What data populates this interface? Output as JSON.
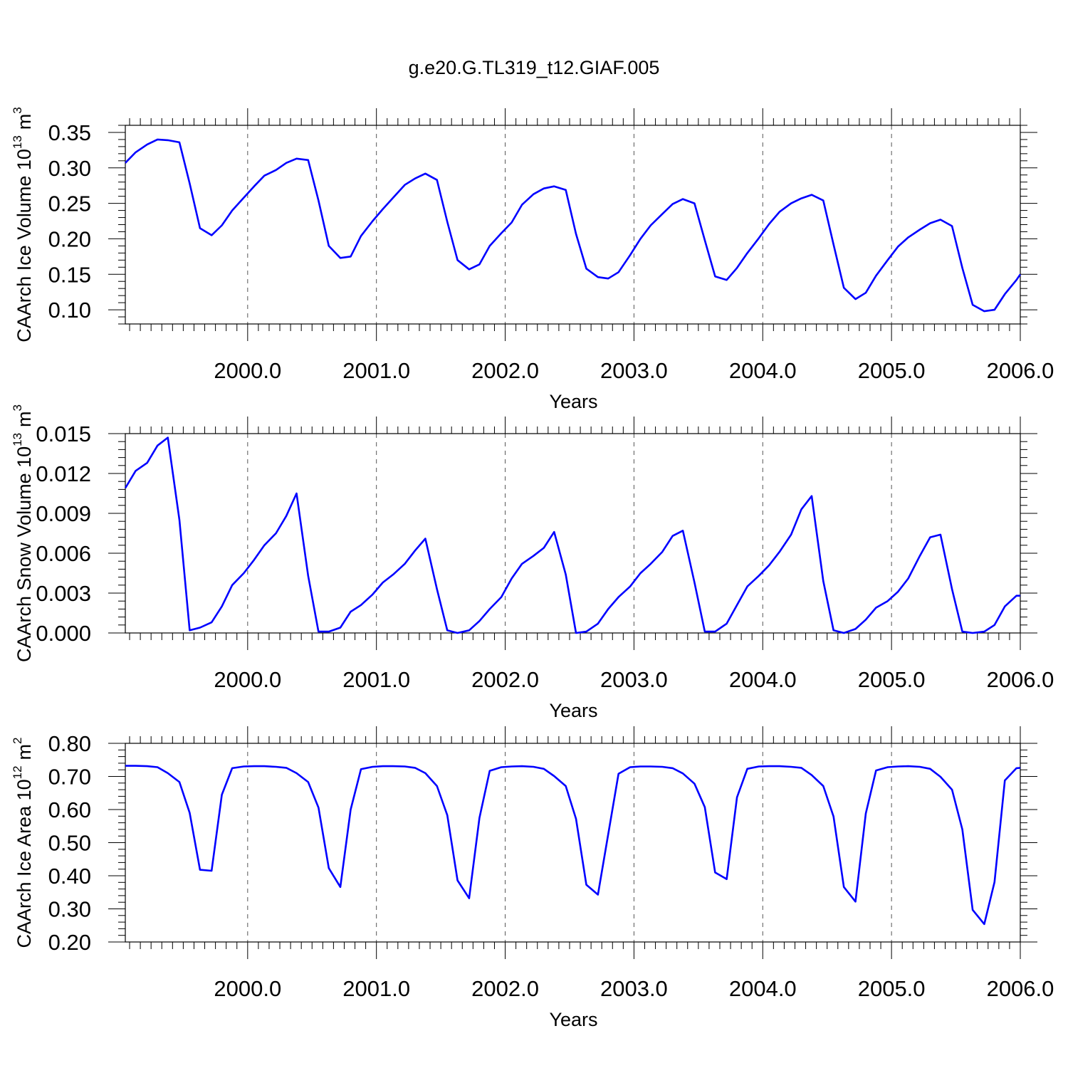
{
  "title": "g.e20.G.TL319_t12.GIAF.005",
  "line_color": "#0000ff",
  "chart_data": [
    {
      "type": "line",
      "ylabel": "CAArch Ice Volume 10",
      "ylabel_exp": "13",
      "ylabel_unit": "m",
      "ylabel_unit_exp": "3",
      "xlabel": "Years",
      "xlim": [
        1999.05,
        2006.0
      ],
      "ylim": [
        0.08,
        0.36
      ],
      "yticks": [
        "0.10",
        "0.15",
        "0.20",
        "0.25",
        "0.30",
        "0.35"
      ],
      "xticks": [
        "2000.0",
        "2001.0",
        "2002.0",
        "2003.0",
        "2004.0",
        "2005.0",
        "2006.0"
      ],
      "grid": "vertical dashed at years",
      "series": [
        {
          "x": [
            1999.05,
            1999.13,
            1999.22,
            1999.3,
            1999.38,
            1999.47,
            1999.55,
            1999.63,
            1999.72,
            1999.8,
            1999.88,
            1999.97,
            2000.05,
            2000.13,
            2000.22,
            2000.3,
            2000.38,
            2000.47,
            2000.55,
            2000.63,
            2000.72,
            2000.8,
            2000.88,
            2000.97,
            2001.05,
            2001.13,
            2001.22,
            2001.3,
            2001.38,
            2001.47,
            2001.55,
            2001.63,
            2001.72,
            2001.8,
            2001.88,
            2001.97,
            2002.05,
            2002.13,
            2002.22,
            2002.3,
            2002.38,
            2002.47,
            2002.55,
            2002.63,
            2002.72,
            2002.8,
            2002.88,
            2002.97,
            2003.05,
            2003.13,
            2003.22,
            2003.3,
            2003.38,
            2003.47,
            2003.55,
            2003.63,
            2003.72,
            2003.8,
            2003.88,
            2003.97,
            2004.05,
            2004.13,
            2004.22,
            2004.3,
            2004.38,
            2004.47,
            2004.55,
            2004.63,
            2004.72,
            2004.8,
            2004.88,
            2004.97,
            2005.05,
            2005.13,
            2005.22,
            2005.3,
            2005.38,
            2005.47,
            2005.55,
            2005.63,
            2005.72,
            2005.8,
            2005.88,
            2005.97,
            2006.0
          ],
          "y": [
            0.307,
            0.322,
            0.333,
            0.34,
            0.339,
            0.336,
            0.278,
            0.215,
            0.205,
            0.219,
            0.24,
            0.258,
            0.274,
            0.289,
            0.297,
            0.307,
            0.313,
            0.311,
            0.254,
            0.19,
            0.173,
            0.175,
            0.204,
            0.225,
            0.242,
            0.258,
            0.276,
            0.285,
            0.292,
            0.283,
            0.224,
            0.17,
            0.157,
            0.164,
            0.19,
            0.208,
            0.223,
            0.248,
            0.263,
            0.271,
            0.274,
            0.269,
            0.207,
            0.158,
            0.146,
            0.144,
            0.153,
            0.177,
            0.2,
            0.219,
            0.235,
            0.249,
            0.256,
            0.25,
            0.198,
            0.147,
            0.142,
            0.159,
            0.18,
            0.201,
            0.221,
            0.238,
            0.25,
            0.257,
            0.262,
            0.254,
            0.192,
            0.131,
            0.115,
            0.124,
            0.148,
            0.17,
            0.189,
            0.202,
            0.213,
            0.222,
            0.227,
            0.218,
            0.159,
            0.107,
            0.098,
            0.1,
            0.122,
            0.142,
            0.15
          ]
        }
      ]
    },
    {
      "type": "line",
      "ylabel": "CAArch Snow Volume 10",
      "ylabel_exp": "13",
      "ylabel_unit": "m",
      "ylabel_unit_exp": "3",
      "xlabel": "Years",
      "xlim": [
        1999.05,
        2006.0
      ],
      "ylim": [
        0.0,
        0.015
      ],
      "yticks": [
        "0.000",
        "0.003",
        "0.006",
        "0.009",
        "0.012",
        "0.015"
      ],
      "xticks": [
        "2000.0",
        "2001.0",
        "2002.0",
        "2003.0",
        "2004.0",
        "2005.0",
        "2006.0"
      ],
      "grid": "vertical dashed at years",
      "series": [
        {
          "x": [
            1999.05,
            1999.13,
            1999.22,
            1999.3,
            1999.38,
            1999.47,
            1999.55,
            1999.63,
            1999.72,
            1999.8,
            1999.88,
            1999.97,
            2000.05,
            2000.13,
            2000.22,
            2000.3,
            2000.38,
            2000.47,
            2000.55,
            2000.63,
            2000.72,
            2000.8,
            2000.88,
            2000.97,
            2001.05,
            2001.13,
            2001.22,
            2001.3,
            2001.38,
            2001.47,
            2001.55,
            2001.63,
            2001.72,
            2001.8,
            2001.88,
            2001.97,
            2002.05,
            2002.13,
            2002.22,
            2002.3,
            2002.38,
            2002.47,
            2002.55,
            2002.63,
            2002.72,
            2002.8,
            2002.88,
            2002.97,
            2003.05,
            2003.13,
            2003.22,
            2003.3,
            2003.38,
            2003.47,
            2003.55,
            2003.63,
            2003.72,
            2003.8,
            2003.88,
            2003.97,
            2004.05,
            2004.13,
            2004.22,
            2004.3,
            2004.38,
            2004.47,
            2004.55,
            2004.63,
            2004.72,
            2004.8,
            2004.88,
            2004.97,
            2005.05,
            2005.13,
            2005.22,
            2005.3,
            2005.38,
            2005.47,
            2005.55,
            2005.63,
            2005.72,
            2005.8,
            2005.88,
            2005.97,
            2006.0
          ],
          "y": [
            0.0109,
            0.0122,
            0.0128,
            0.0141,
            0.0147,
            0.0085,
            0.0002,
            0.0004,
            0.0008,
            0.002,
            0.0036,
            0.0045,
            0.0055,
            0.0066,
            0.0075,
            0.0088,
            0.0105,
            0.0043,
            0.0001,
            0.0001,
            0.0004,
            0.0016,
            0.0021,
            0.0029,
            0.0038,
            0.0044,
            0.0052,
            0.0062,
            0.0071,
            0.0033,
            0.0002,
            0.0,
            0.0002,
            0.0009,
            0.0018,
            0.0027,
            0.0041,
            0.0052,
            0.0058,
            0.0064,
            0.0076,
            0.0044,
            0.0,
            0.0001,
            0.0007,
            0.0018,
            0.0027,
            0.0035,
            0.0045,
            0.0052,
            0.0061,
            0.0073,
            0.0077,
            0.0038,
            0.0001,
            0.0001,
            0.0007,
            0.0021,
            0.0035,
            0.0043,
            0.0051,
            0.0061,
            0.0074,
            0.0093,
            0.0103,
            0.0039,
            0.0002,
            0.0,
            0.0003,
            0.001,
            0.0019,
            0.0024,
            0.0031,
            0.0041,
            0.0058,
            0.0072,
            0.0074,
            0.0033,
            0.0001,
            0.0,
            0.0001,
            0.0006,
            0.002,
            0.0028,
            0.0028
          ]
        }
      ]
    },
    {
      "type": "line",
      "ylabel": "CAArch Ice Area 10",
      "ylabel_exp": "12",
      "ylabel_unit": "m",
      "ylabel_unit_exp": "2",
      "xlabel": "Years",
      "xlim": [
        1999.05,
        2006.0
      ],
      "ylim": [
        0.2,
        0.8
      ],
      "yticks": [
        "0.20",
        "0.30",
        "0.40",
        "0.50",
        "0.60",
        "0.70",
        "0.80"
      ],
      "xticks": [
        "2000.0",
        "2001.0",
        "2002.0",
        "2003.0",
        "2004.0",
        "2005.0",
        "2006.0"
      ],
      "grid": "vertical dashed at years",
      "series": [
        {
          "x": [
            1999.05,
            1999.13,
            1999.22,
            1999.3,
            1999.38,
            1999.47,
            1999.55,
            1999.63,
            1999.72,
            1999.8,
            1999.88,
            1999.97,
            2000.05,
            2000.13,
            2000.22,
            2000.3,
            2000.38,
            2000.47,
            2000.55,
            2000.63,
            2000.72,
            2000.8,
            2000.88,
            2000.97,
            2001.05,
            2001.13,
            2001.22,
            2001.3,
            2001.38,
            2001.47,
            2001.55,
            2001.63,
            2001.72,
            2001.8,
            2001.88,
            2001.97,
            2002.05,
            2002.13,
            2002.22,
            2002.3,
            2002.38,
            2002.47,
            2002.55,
            2002.63,
            2002.72,
            2002.8,
            2002.88,
            2002.97,
            2003.05,
            2003.13,
            2003.22,
            2003.3,
            2003.38,
            2003.47,
            2003.55,
            2003.63,
            2003.72,
            2003.8,
            2003.88,
            2003.97,
            2004.05,
            2004.13,
            2004.22,
            2004.3,
            2004.38,
            2004.47,
            2004.55,
            2004.63,
            2004.72,
            2004.8,
            2004.88,
            2004.97,
            2005.05,
            2005.13,
            2005.22,
            2005.3,
            2005.38,
            2005.47,
            2005.55,
            2005.63,
            2005.72,
            2005.8,
            2005.88,
            2005.97,
            2006.0
          ],
          "y": [
            0.732,
            0.732,
            0.731,
            0.728,
            0.71,
            0.683,
            0.59,
            0.418,
            0.415,
            0.645,
            0.725,
            0.73,
            0.731,
            0.731,
            0.729,
            0.726,
            0.71,
            0.683,
            0.606,
            0.423,
            0.366,
            0.6,
            0.722,
            0.729,
            0.731,
            0.731,
            0.73,
            0.726,
            0.71,
            0.671,
            0.583,
            0.386,
            0.332,
            0.575,
            0.717,
            0.728,
            0.73,
            0.731,
            0.729,
            0.723,
            0.701,
            0.671,
            0.572,
            0.373,
            0.343,
            0.525,
            0.708,
            0.728,
            0.73,
            0.73,
            0.729,
            0.725,
            0.709,
            0.678,
            0.607,
            0.41,
            0.39,
            0.637,
            0.723,
            0.73,
            0.731,
            0.731,
            0.729,
            0.726,
            0.704,
            0.671,
            0.579,
            0.366,
            0.322,
            0.588,
            0.718,
            0.728,
            0.73,
            0.731,
            0.729,
            0.723,
            0.699,
            0.66,
            0.54,
            0.297,
            0.254,
            0.381,
            0.688,
            0.725,
            0.726
          ]
        }
      ]
    }
  ]
}
